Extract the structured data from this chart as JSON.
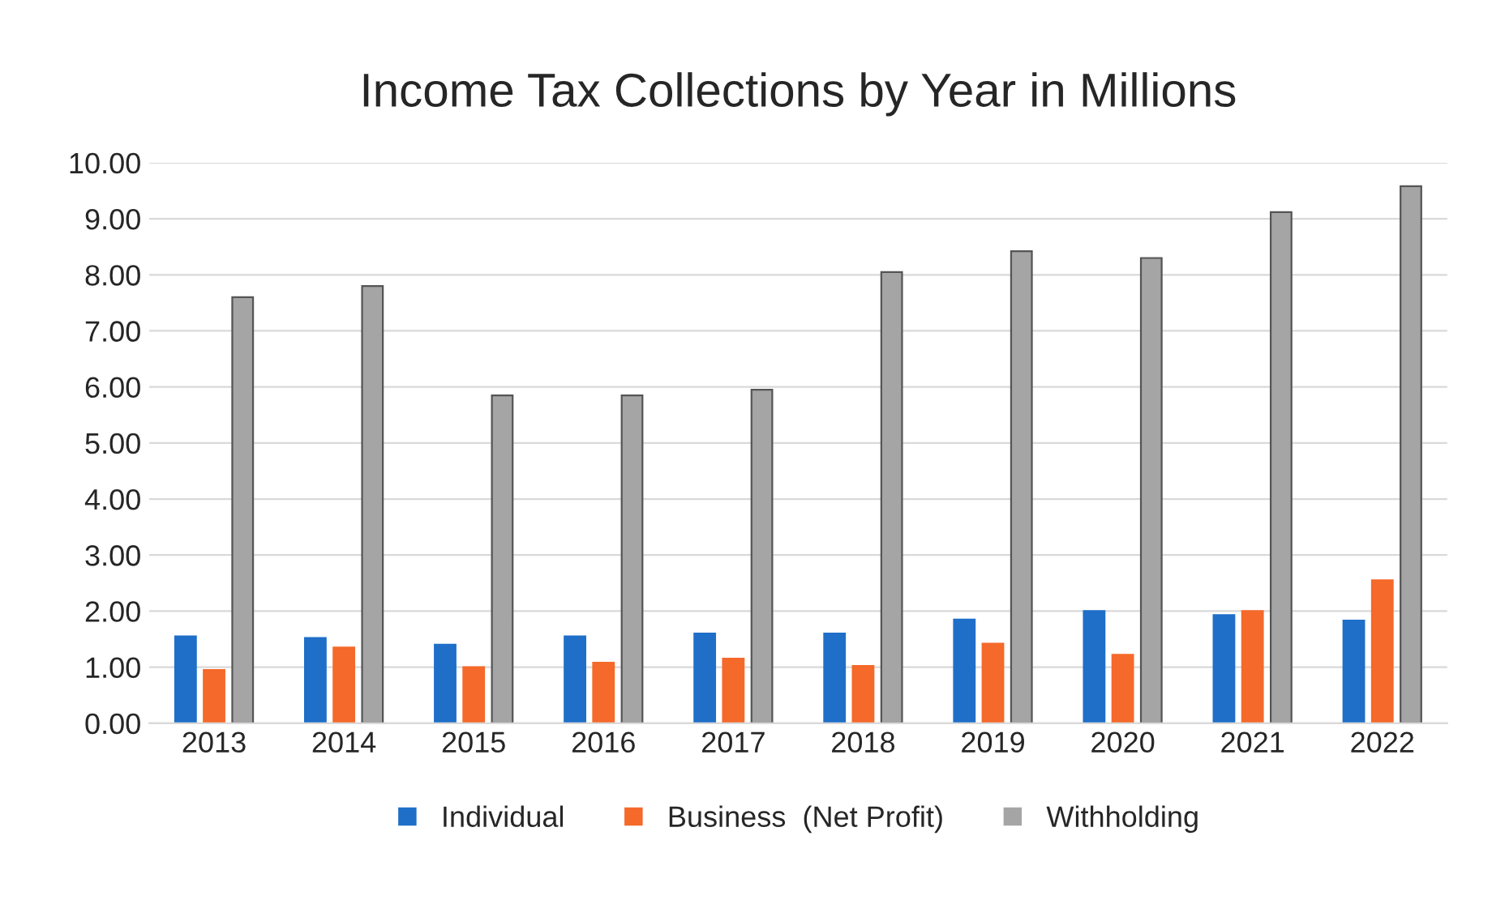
{
  "chart_data": {
    "type": "bar",
    "title": "Income Tax Collections by Year in Millions",
    "categories": [
      "2013",
      "2014",
      "2015",
      "2016",
      "2017",
      "2018",
      "2019",
      "2020",
      "2021",
      "2022"
    ],
    "series": [
      {
        "name": "Individual",
        "color": "#1f6fc9",
        "values": [
          1.55,
          1.52,
          1.4,
          1.55,
          1.6,
          1.6,
          1.85,
          2.0,
          1.93,
          1.83
        ]
      },
      {
        "name": "Business  (Net Profit)",
        "color": "#f5692a",
        "values": [
          0.95,
          1.35,
          1.0,
          1.08,
          1.15,
          1.02,
          1.42,
          1.22,
          2.0,
          2.55
        ]
      },
      {
        "name": "Withholding",
        "color": "#a5a5a5",
        "values": [
          7.6,
          7.8,
          5.85,
          5.85,
          5.95,
          8.05,
          8.42,
          8.3,
          9.12,
          9.58
        ]
      }
    ],
    "ylim": [
      0,
      10
    ],
    "yticks": [
      {
        "value": 0,
        "label": "0.00"
      },
      {
        "value": 1,
        "label": "1.00"
      },
      {
        "value": 2,
        "label": "2.00"
      },
      {
        "value": 3,
        "label": "3.00"
      },
      {
        "value": 4,
        "label": "4.00"
      },
      {
        "value": 5,
        "label": "5.00"
      },
      {
        "value": 6,
        "label": "6.00"
      },
      {
        "value": 7,
        "label": "7.00"
      },
      {
        "value": 8,
        "label": "8.00"
      },
      {
        "value": 9,
        "label": "9.00"
      },
      {
        "value": 10,
        "label": "10.00"
      }
    ],
    "grid": "y",
    "legend": "bottom"
  }
}
